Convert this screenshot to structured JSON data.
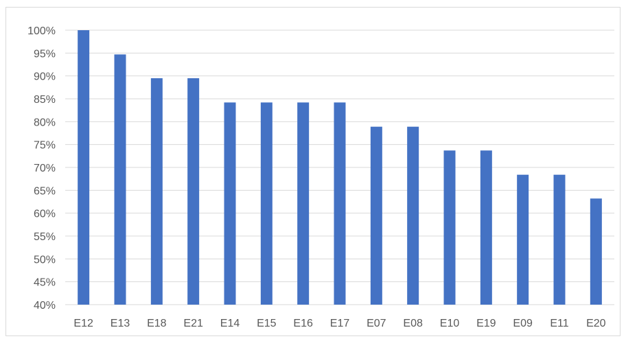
{
  "chart_data": {
    "type": "bar",
    "categories": [
      "E12",
      "E13",
      "E18",
      "E21",
      "E14",
      "E15",
      "E16",
      "E17",
      "E07",
      "E08",
      "E10",
      "E19",
      "E09",
      "E11",
      "E20"
    ],
    "values": [
      100,
      94.7,
      89.5,
      89.5,
      84.2,
      84.2,
      84.2,
      84.2,
      78.9,
      78.9,
      73.7,
      73.7,
      68.4,
      68.4,
      63.2
    ],
    "ylim": [
      40,
      100
    ],
    "ytick_step": 5,
    "ytick_labels": [
      "40%",
      "45%",
      "50%",
      "55%",
      "60%",
      "65%",
      "70%",
      "75%",
      "80%",
      "85%",
      "90%",
      "95%",
      "100%"
    ],
    "bar_color": "#4472c4",
    "gridline_color": "#d9d9d9",
    "grid": true,
    "legend": false,
    "title": "",
    "xlabel": "",
    "ylabel": ""
  }
}
